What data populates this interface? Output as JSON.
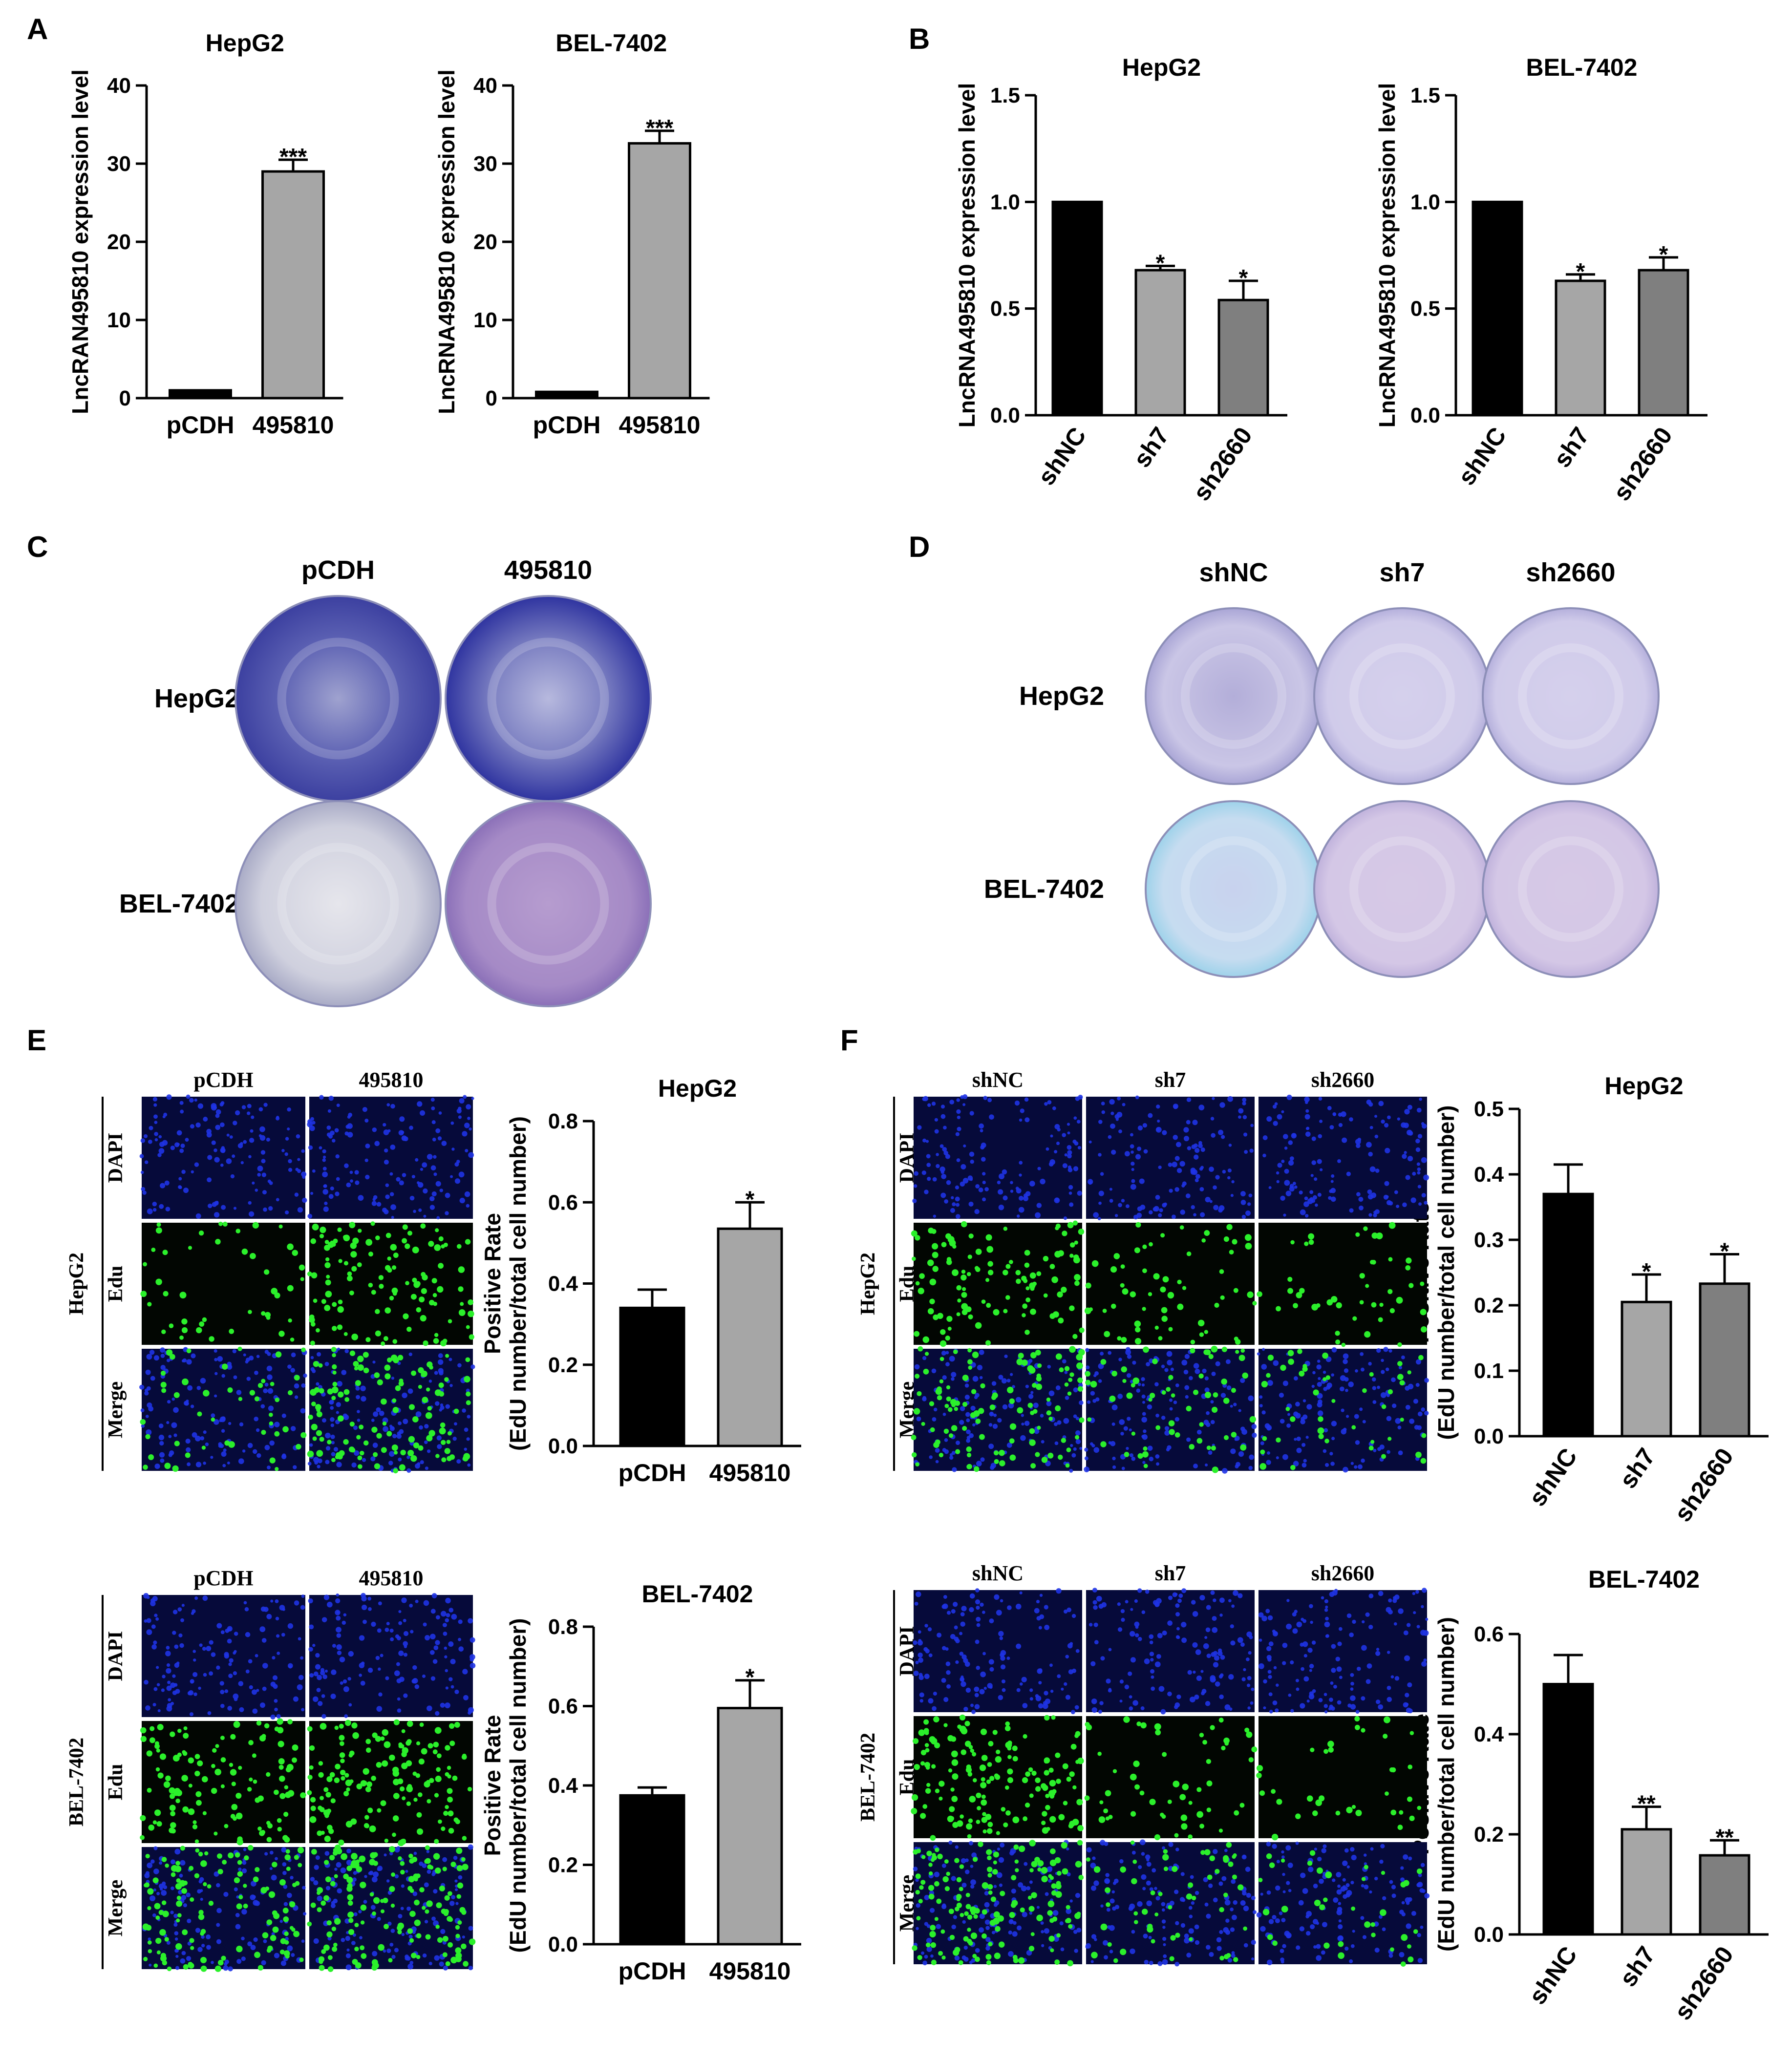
{
  "colors": {
    "bar_black": "#000000",
    "bar_light": "#a6a6a6",
    "bar_mid": "#7f7f7f",
    "dish_dark": "#4a4fa8",
    "dish_light": "#c9c3e6",
    "dish_pale_blue": "#cfe3f2",
    "micro_bg": "#0a0a2a",
    "dapi": "#2233ff",
    "edu": "#22ee22"
  },
  "panels": {
    "A": "A",
    "B": "B",
    "C": "C",
    "D": "D",
    "E": "E",
    "F": "F"
  },
  "dish_panels": [
    {
      "id": "C",
      "columns": [
        "pCDH",
        "495810"
      ],
      "rows": [
        "HepG2",
        "BEL-7402"
      ]
    },
    {
      "id": "D",
      "columns": [
        "shNC",
        "sh7",
        "sh2660"
      ],
      "rows": [
        "HepG2",
        "BEL-7402"
      ]
    }
  ],
  "micro_panels": [
    {
      "id": "E-top",
      "cell_line": "HepG2",
      "columns": [
        "pCDH",
        "495810"
      ],
      "rows": [
        "DAPI",
        "Edu",
        "Merge"
      ]
    },
    {
      "id": "E-bottom",
      "cell_line": "BEL-7402",
      "columns": [
        "pCDH",
        "495810"
      ],
      "rows": [
        "DAPI",
        "Edu",
        "Merge"
      ]
    },
    {
      "id": "F-top",
      "cell_line": "HepG2",
      "columns": [
        "shNC",
        "sh7",
        "sh2660"
      ],
      "rows": [
        "DAPI",
        "Edu",
        "Merge"
      ]
    },
    {
      "id": "F-bottom",
      "cell_line": "BEL-7402",
      "columns": [
        "shNC",
        "sh7",
        "sh2660"
      ],
      "rows": [
        "DAPI",
        "Edu",
        "Merge"
      ]
    }
  ],
  "chart_data": [
    {
      "id": "A1",
      "type": "bar",
      "title": "HepG2",
      "ylabel": "LncRAN495810 expression level",
      "categories": [
        "pCDH",
        "495810"
      ],
      "values": [
        1,
        29
      ],
      "errors": [
        0,
        1.5
      ],
      "significance": [
        "",
        "***"
      ],
      "ylim": [
        0,
        40
      ],
      "yticks": [
        0,
        10,
        20,
        30,
        40
      ],
      "ytick_labels": [
        "0",
        "10",
        "20",
        "30",
        "40"
      ],
      "bar_colors": [
        "#000000",
        "#a6a6a6"
      ],
      "rotate_labels": false
    },
    {
      "id": "A2",
      "type": "bar",
      "title": "BEL-7402",
      "ylabel": "LncRNA495810 expression level",
      "categories": [
        "pCDH",
        "495810"
      ],
      "values": [
        0.8,
        32.6
      ],
      "errors": [
        0,
        1.6
      ],
      "significance": [
        "",
        "***"
      ],
      "ylim": [
        0,
        40
      ],
      "yticks": [
        0,
        10,
        20,
        30,
        40
      ],
      "ytick_labels": [
        "0",
        "10",
        "20",
        "30",
        "40"
      ],
      "bar_colors": [
        "#000000",
        "#a6a6a6"
      ],
      "rotate_labels": false
    },
    {
      "id": "B1",
      "type": "bar",
      "title": "HepG2",
      "ylabel": "LncRNA495810 expression level",
      "categories": [
        "shNC",
        "sh7",
        "sh2660"
      ],
      "values": [
        1.0,
        0.68,
        0.54
      ],
      "errors": [
        0,
        0.02,
        0.09
      ],
      "significance": [
        "",
        "*",
        "*"
      ],
      "ylim": [
        0,
        1.5
      ],
      "yticks": [
        0,
        0.5,
        1.0,
        1.5
      ],
      "ytick_labels": [
        "0.0",
        "0.5",
        "1.0",
        "1.5"
      ],
      "bar_colors": [
        "#000000",
        "#a6a6a6",
        "#7f7f7f"
      ],
      "rotate_labels": true
    },
    {
      "id": "B2",
      "type": "bar",
      "title": "BEL-7402",
      "ylabel": "LncRNA495810 expression level",
      "categories": [
        "shNC",
        "sh7",
        "sh2660"
      ],
      "values": [
        1.0,
        0.63,
        0.68
      ],
      "errors": [
        0,
        0.03,
        0.06
      ],
      "significance": [
        "",
        "*",
        "*"
      ],
      "ylim": [
        0,
        1.5
      ],
      "yticks": [
        0,
        0.5,
        1.0,
        1.5
      ],
      "ytick_labels": [
        "0.0",
        "0.5",
        "1.0",
        "1.5"
      ],
      "bar_colors": [
        "#000000",
        "#a6a6a6",
        "#7f7f7f"
      ],
      "rotate_labels": true
    },
    {
      "id": "E1",
      "type": "bar",
      "title": "HepG2",
      "ylabel": [
        "Positive Rate",
        "(EdU number/total cell number)"
      ],
      "categories": [
        "pCDH",
        "495810"
      ],
      "values": [
        0.34,
        0.535
      ],
      "errors": [
        0.045,
        0.065
      ],
      "significance": [
        "",
        "*"
      ],
      "ylim": [
        0,
        0.8
      ],
      "yticks": [
        0,
        0.2,
        0.4,
        0.6,
        0.8
      ],
      "ytick_labels": [
        "0.0",
        "0.2",
        "0.4",
        "0.6",
        "0.8"
      ],
      "bar_colors": [
        "#000000",
        "#a6a6a6"
      ],
      "rotate_labels": false
    },
    {
      "id": "E2",
      "type": "bar",
      "title": "BEL-7402",
      "ylabel": [
        "Positive Rate",
        "(EdU number/total cell number)"
      ],
      "categories": [
        "pCDH",
        "495810"
      ],
      "values": [
        0.375,
        0.595
      ],
      "errors": [
        0.02,
        0.07
      ],
      "significance": [
        "",
        "*"
      ],
      "ylim": [
        0,
        0.8
      ],
      "yticks": [
        0,
        0.2,
        0.4,
        0.6,
        0.8
      ],
      "ytick_labels": [
        "0.0",
        "0.2",
        "0.4",
        "0.6",
        "0.8"
      ],
      "bar_colors": [
        "#000000",
        "#a6a6a6"
      ],
      "rotate_labels": false
    },
    {
      "id": "F1",
      "type": "bar",
      "title": "HepG2",
      "ylabel": [
        "Positive Rate",
        "(EdU number/total cell number)"
      ],
      "categories": [
        "shNC",
        "sh7",
        "sh2660"
      ],
      "values": [
        0.37,
        0.205,
        0.233
      ],
      "errors": [
        0.045,
        0.042,
        0.045
      ],
      "significance": [
        "",
        "*",
        "*"
      ],
      "ylim": [
        0,
        0.5
      ],
      "yticks": [
        0,
        0.1,
        0.2,
        0.3,
        0.4,
        0.5
      ],
      "ytick_labels": [
        "0.0",
        "0.1",
        "0.2",
        "0.3",
        "0.4",
        "0.5"
      ],
      "bar_colors": [
        "#000000",
        "#a6a6a6",
        "#7f7f7f"
      ],
      "rotate_labels": true
    },
    {
      "id": "F2",
      "type": "bar",
      "title": "BEL-7402",
      "ylabel": [
        "Positive Rate",
        "(EdU number/total cell number)"
      ],
      "categories": [
        "shNC",
        "sh7",
        "sh2660"
      ],
      "values": [
        0.5,
        0.21,
        0.158
      ],
      "errors": [
        0.058,
        0.045,
        0.03
      ],
      "significance": [
        "",
        "**",
        "**"
      ],
      "ylim": [
        0,
        0.6
      ],
      "yticks": [
        0,
        0.2,
        0.4,
        0.6
      ],
      "ytick_labels": [
        "0.0",
        "0.2",
        "0.4",
        "0.6"
      ],
      "bar_colors": [
        "#000000",
        "#a6a6a6",
        "#7f7f7f"
      ],
      "rotate_labels": true
    }
  ]
}
